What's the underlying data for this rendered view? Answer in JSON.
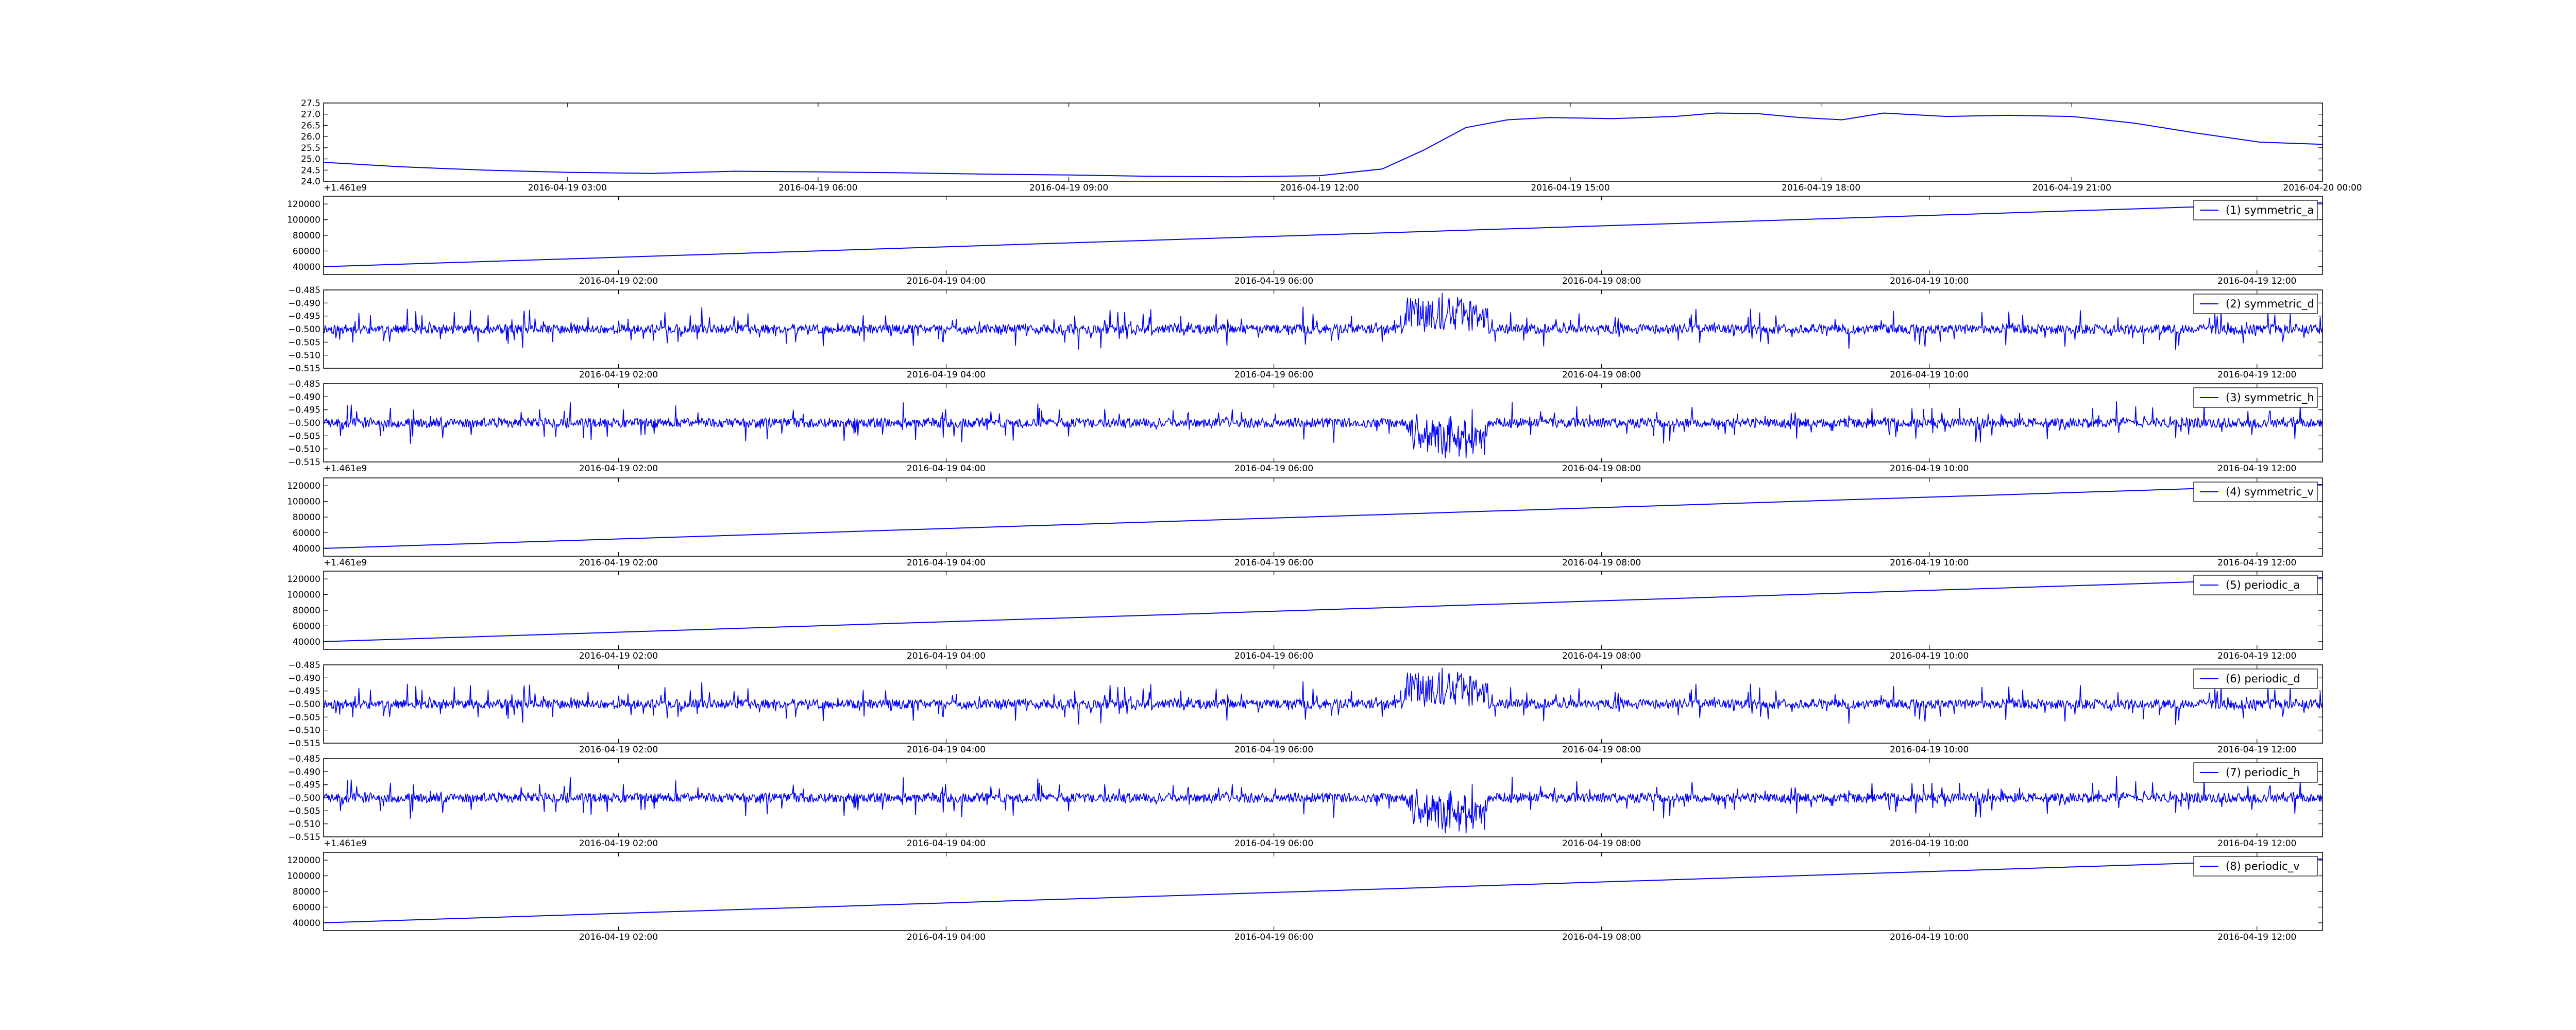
{
  "chart_data": [
    {
      "type": "line",
      "title": "",
      "offset_label": "+1.461e9",
      "x_ticks": [
        "2016-04-19 03:00",
        "2016-04-19 06:00",
        "2016-04-19 09:00",
        "2016-04-19 12:00",
        "2016-04-19 15:00",
        "2016-04-19 18:00",
        "2016-04-19 21:00",
        "2016-04-20 00:00"
      ],
      "xlim": [
        "2016-04-19 00:05",
        "2016-04-20 00:00"
      ],
      "y_ticks": [
        "24.0",
        "24.5",
        "25.0",
        "25.5",
        "26.0",
        "26.5",
        "27.0",
        "27.5"
      ],
      "ylim": [
        24.0,
        27.5
      ],
      "legend": "",
      "series": [
        {
          "color": "#0000ff",
          "x": [
            "2016-04-19 00:05",
            "2016-04-19 01:00",
            "2016-04-19 02:00",
            "2016-04-19 03:00",
            "2016-04-19 04:00",
            "2016-04-19 05:00",
            "2016-04-19 06:00",
            "2016-04-19 07:00",
            "2016-04-19 08:00",
            "2016-04-19 09:00",
            "2016-04-19 10:00",
            "2016-04-19 11:00",
            "2016-04-19 12:00",
            "2016-04-19 12:45",
            "2016-04-19 13:15",
            "2016-04-19 13:45",
            "2016-04-19 14:15",
            "2016-04-19 14:45",
            "2016-04-19 15:30",
            "2016-04-19 16:15",
            "2016-04-19 16:45",
            "2016-04-19 17:15",
            "2016-04-19 17:45",
            "2016-04-19 18:15",
            "2016-04-19 18:45",
            "2016-04-19 19:30",
            "2016-04-19 20:15",
            "2016-04-19 21:00",
            "2016-04-19 21:45",
            "2016-04-19 22:30",
            "2016-04-19 23:15",
            "2016-04-20 00:00"
          ],
          "y": [
            24.85,
            24.65,
            24.5,
            24.4,
            24.35,
            24.45,
            24.42,
            24.38,
            24.32,
            24.28,
            24.22,
            24.2,
            24.25,
            24.55,
            25.4,
            26.4,
            26.75,
            26.85,
            26.8,
            26.9,
            27.05,
            27.02,
            26.85,
            26.75,
            27.05,
            26.9,
            26.95,
            26.9,
            26.6,
            26.15,
            25.75,
            25.65
          ]
        }
      ]
    },
    {
      "type": "line",
      "offset_label": "",
      "x_ticks": [
        "2016-04-19 02:00",
        "2016-04-19 04:00",
        "2016-04-19 06:00",
        "2016-04-19 08:00",
        "2016-04-19 10:00",
        "2016-04-19 12:00"
      ],
      "xlim": [
        "2016-04-19 00:12",
        "2016-04-19 12:24"
      ],
      "y_ticks": [
        "40000",
        "60000",
        "80000",
        "100000",
        "120000"
      ],
      "ylim": [
        30000,
        130000
      ],
      "legend": "(1) symmetric_a",
      "legend_position": "top-right",
      "series": [
        {
          "name": "(1) symmetric_a",
          "color": "#0000ff",
          "x": [
            "2016-04-19 00:12",
            "2016-04-19 12:24"
          ],
          "y": [
            40000,
            121500
          ]
        }
      ]
    },
    {
      "type": "line",
      "offset_label": "",
      "x_ticks": [
        "2016-04-19 02:00",
        "2016-04-19 04:00",
        "2016-04-19 06:00",
        "2016-04-19 08:00",
        "2016-04-19 10:00",
        "2016-04-19 12:00"
      ],
      "xlim": [
        "2016-04-19 00:12",
        "2016-04-19 12:24"
      ],
      "y_ticks": [
        "−0.515",
        "−0.510",
        "−0.505",
        "−0.500",
        "−0.495",
        "−0.490",
        "−0.485"
      ],
      "ylim": [
        -0.515,
        -0.485
      ],
      "legend": "(2) symmetric_d",
      "legend_position": "top-right",
      "noise": {
        "baseline": -0.5,
        "burst_hours": [
          6.8,
          7.3
        ],
        "burst_sign": 1,
        "seed": 11
      },
      "series": [
        {
          "name": "(2) symmetric_d",
          "color": "#0000ff"
        }
      ]
    },
    {
      "type": "line",
      "offset_label": "+1.461e9",
      "x_ticks": [
        "2016-04-19 02:00",
        "2016-04-19 04:00",
        "2016-04-19 06:00",
        "2016-04-19 08:00",
        "2016-04-19 10:00",
        "2016-04-19 12:00"
      ],
      "xlim": [
        "2016-04-19 00:12",
        "2016-04-19 12:24"
      ],
      "y_ticks": [
        "−0.515",
        "−0.510",
        "−0.505",
        "−0.500",
        "−0.495",
        "−0.490",
        "−0.485"
      ],
      "ylim": [
        -0.515,
        -0.485
      ],
      "legend": "(3) symmetric_h",
      "legend_position": "top-right",
      "noise": {
        "baseline": -0.5,
        "burst_hours": [
          6.8,
          7.3
        ],
        "burst_sign": -1,
        "seed": 23
      },
      "series": [
        {
          "name": "(3) symmetric_h",
          "color": "#0000ff"
        }
      ]
    },
    {
      "type": "line",
      "offset_label": "+1.461e9",
      "x_ticks": [
        "2016-04-19 02:00",
        "2016-04-19 04:00",
        "2016-04-19 06:00",
        "2016-04-19 08:00",
        "2016-04-19 10:00",
        "2016-04-19 12:00"
      ],
      "xlim": [
        "2016-04-19 00:12",
        "2016-04-19 12:24"
      ],
      "y_ticks": [
        "40000",
        "60000",
        "80000",
        "100000",
        "120000"
      ],
      "ylim": [
        30000,
        130000
      ],
      "legend": "(4) symmetric_v",
      "legend_position": "top-right",
      "series": [
        {
          "name": "(4) symmetric_v",
          "color": "#0000ff",
          "x": [
            "2016-04-19 00:12",
            "2016-04-19 12:24"
          ],
          "y": [
            40000,
            121500
          ]
        }
      ]
    },
    {
      "type": "line",
      "offset_label": "",
      "x_ticks": [
        "2016-04-19 02:00",
        "2016-04-19 04:00",
        "2016-04-19 06:00",
        "2016-04-19 08:00",
        "2016-04-19 10:00",
        "2016-04-19 12:00"
      ],
      "xlim": [
        "2016-04-19 00:12",
        "2016-04-19 12:24"
      ],
      "y_ticks": [
        "40000",
        "60000",
        "80000",
        "100000",
        "120000"
      ],
      "ylim": [
        30000,
        130000
      ],
      "legend": "(5) periodic_a",
      "legend_position": "top-right",
      "series": [
        {
          "name": "(5) periodic_a",
          "color": "#0000ff",
          "x": [
            "2016-04-19 00:12",
            "2016-04-19 12:24"
          ],
          "y": [
            40000,
            121500
          ]
        }
      ]
    },
    {
      "type": "line",
      "offset_label": "",
      "x_ticks": [
        "2016-04-19 02:00",
        "2016-04-19 04:00",
        "2016-04-19 06:00",
        "2016-04-19 08:00",
        "2016-04-19 10:00",
        "2016-04-19 12:00"
      ],
      "xlim": [
        "2016-04-19 00:12",
        "2016-04-19 12:24"
      ],
      "y_ticks": [
        "−0.515",
        "−0.510",
        "−0.505",
        "−0.500",
        "−0.495",
        "−0.490",
        "−0.485"
      ],
      "ylim": [
        -0.515,
        -0.485
      ],
      "legend": "(6) periodic_d",
      "legend_position": "top-right",
      "noise": {
        "baseline": -0.5,
        "burst_hours": [
          6.8,
          7.3
        ],
        "burst_sign": 1,
        "seed": 11
      },
      "series": [
        {
          "name": "(6) periodic_d",
          "color": "#0000ff"
        }
      ]
    },
    {
      "type": "line",
      "offset_label": "+1.461e9",
      "x_ticks": [
        "2016-04-19 02:00",
        "2016-04-19 04:00",
        "2016-04-19 06:00",
        "2016-04-19 08:00",
        "2016-04-19 10:00",
        "2016-04-19 12:00"
      ],
      "xlim": [
        "2016-04-19 00:12",
        "2016-04-19 12:24"
      ],
      "y_ticks": [
        "−0.515",
        "−0.510",
        "−0.505",
        "−0.500",
        "−0.495",
        "−0.490",
        "−0.485"
      ],
      "ylim": [
        -0.515,
        -0.485
      ],
      "legend": "(7) periodic_h",
      "legend_position": "top-right",
      "noise": {
        "baseline": -0.5,
        "burst_hours": [
          6.8,
          7.3
        ],
        "burst_sign": -1,
        "seed": 23
      },
      "series": [
        {
          "name": "(7) periodic_h",
          "color": "#0000ff"
        }
      ]
    },
    {
      "type": "line",
      "offset_label": "",
      "x_ticks": [
        "2016-04-19 02:00",
        "2016-04-19 04:00",
        "2016-04-19 06:00",
        "2016-04-19 08:00",
        "2016-04-19 10:00",
        "2016-04-19 12:00"
      ],
      "xlim": [
        "2016-04-19 00:12",
        "2016-04-19 12:24"
      ],
      "y_ticks": [
        "40000",
        "60000",
        "80000",
        "100000",
        "120000"
      ],
      "ylim": [
        30000,
        130000
      ],
      "legend": "(8) periodic_v",
      "legend_position": "top-right",
      "series": [
        {
          "name": "(8) periodic_v",
          "color": "#0000ff",
          "x": [
            "2016-04-19 00:12",
            "2016-04-19 12:24"
          ],
          "y": [
            40000,
            121500
          ]
        }
      ]
    }
  ]
}
